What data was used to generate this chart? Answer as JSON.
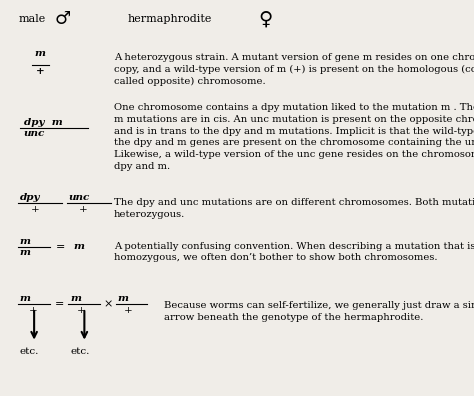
{
  "bg_color": "#f0ede8",
  "header": {
    "male_text": "male",
    "herm_text": "hermaphrodite",
    "male_symbol": "♂",
    "herm_symbol": "♀"
  },
  "rows": [
    {
      "frac_top": "m",
      "frac_bottom": "+",
      "desc": "A heterozygous strain. A mutant version of gene m resides on one chromosomal\ncopy, and a wild-type version of m (+) is present on the homologous (commonly\ncalled opposite) chromosome."
    },
    {
      "frac_top": "dpy  m",
      "frac_bottom": "unc",
      "desc": "One chromosome contains a dpy mutation liked to the mutation m . The dpy and\nm mutations are in cis. An unc mutation is present on the opposite chromosome\nand is in trans to the dpy and m mutations. Implicit is that the wild-type copies of\nthe dpy and m genes are present on the chromosome containing the unc mutation.\nLikewise, a wild-type version of the unc gene resides on the chromosome with\ndpy and m."
    },
    {
      "frac1_top": "dpy",
      "frac1_bottom": "+",
      "frac2_top": "unc",
      "frac2_bottom": "+",
      "two_fracs": true,
      "desc": "The dpy and unc mutations are on different chromosomes. Both mutations are\nheterozygous."
    },
    {
      "frac_top": "m",
      "frac_bottom": "m",
      "eq_right": "m",
      "has_eq": true,
      "desc": "A potentially confusing convention. When describing a mutation that is\nhomozygous, we often don’t bother to show both chromosomes."
    },
    {
      "frac_top": "m",
      "frac_bottom": "+",
      "has_cross": true,
      "desc": "Because worms can self-fertilize, we generally just draw a single\narrow beneath the genotype of the hermaphrodite."
    }
  ]
}
